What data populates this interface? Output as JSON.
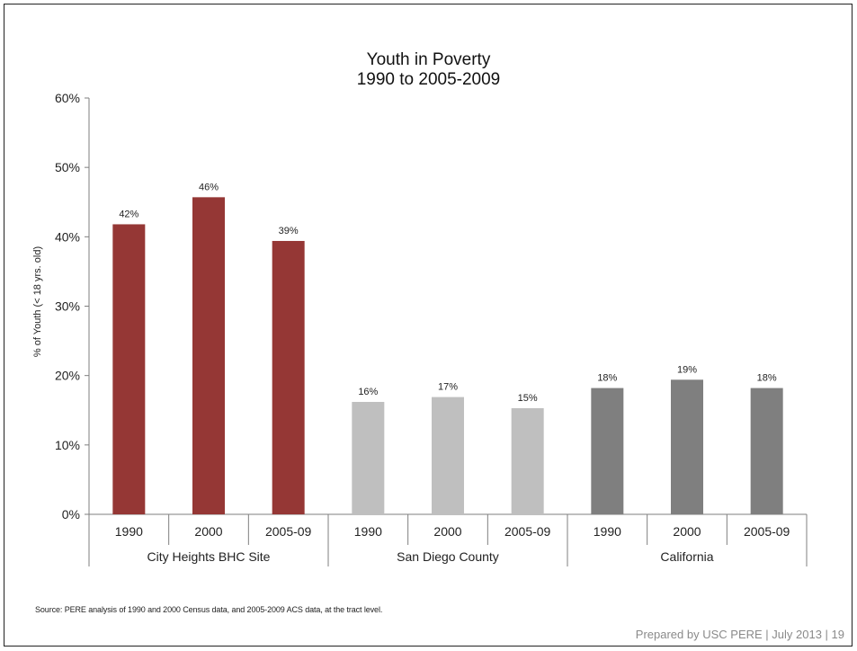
{
  "chart_data": {
    "type": "bar",
    "title_lines": [
      "Youth in Poverty",
      "1990 to 2005-2009"
    ],
    "ylabel": "% of Youth (< 18 yrs. old)",
    "ylim": [
      0,
      0.6
    ],
    "yticks": [
      0,
      0.1,
      0.2,
      0.3,
      0.4,
      0.5,
      0.6
    ],
    "ytick_labels": [
      "0%",
      "10%",
      "20%",
      "30%",
      "40%",
      "50%",
      "60%"
    ],
    "grid": false,
    "legend": "none",
    "groups": [
      {
        "name": "City Heights BHC Site",
        "color": "#953735",
        "categories": [
          "1990",
          "2000",
          "2005-09"
        ],
        "values": [
          0.418,
          0.457,
          0.394
        ],
        "labels": [
          "42%",
          "46%",
          "39%"
        ]
      },
      {
        "name": "San Diego County",
        "color": "#bfbfbf",
        "categories": [
          "1990",
          "2000",
          "2005-09"
        ],
        "values": [
          0.162,
          0.169,
          0.153
        ],
        "labels": [
          "16%",
          "17%",
          "15%"
        ]
      },
      {
        "name": "California",
        "color": "#7f7f7f",
        "categories": [
          "1990",
          "2000",
          "2005-09"
        ],
        "values": [
          0.182,
          0.194,
          0.182
        ],
        "labels": [
          "18%",
          "19%",
          "18%"
        ]
      }
    ]
  },
  "source_note": "Source: PERE analysis of 1990 and 2000 Census data, and 2005-2009 ACS data, at the tract level.",
  "footer": "Prepared by USC PERE | July 2013 | 19"
}
